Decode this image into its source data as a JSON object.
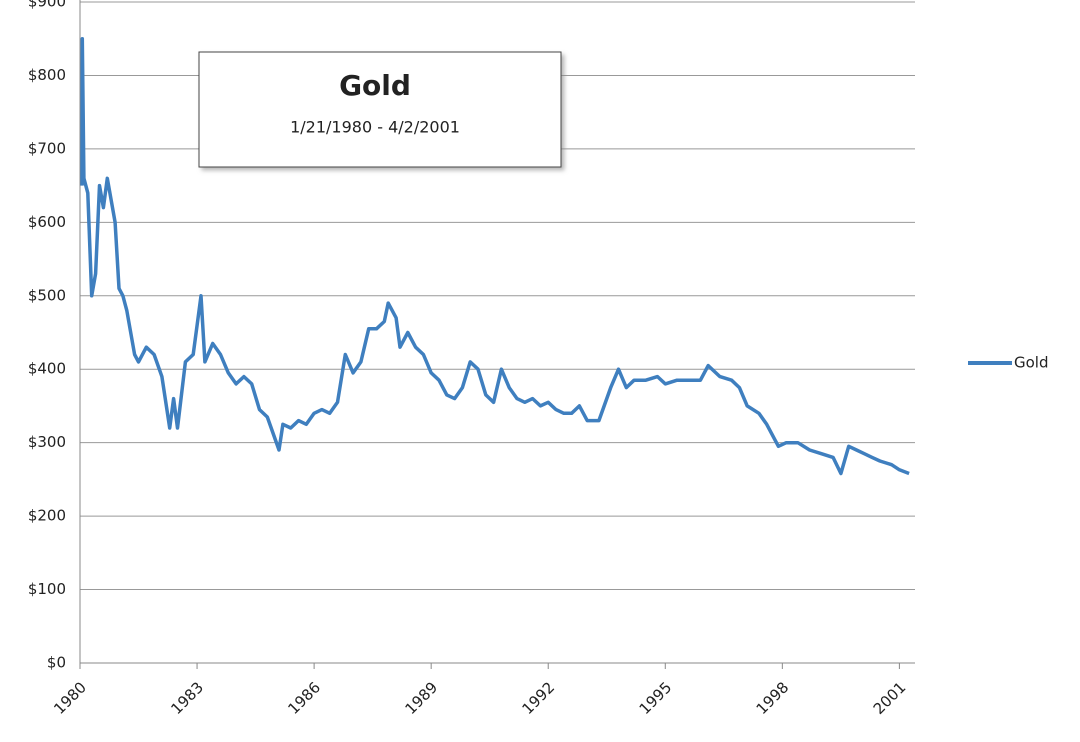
{
  "chart_data": {
    "type": "line",
    "title": "Gold",
    "subtitle": "1/21/1980  - 4/2/2001",
    "xlim": [
      1980,
      2001.4
    ],
    "xticks": [
      1980,
      1983,
      1986,
      1989,
      1992,
      1995,
      1998,
      2001
    ],
    "ylim": [
      0,
      900
    ],
    "yticks": [
      {
        "value": 0,
        "label": "$0"
      },
      {
        "value": 100,
        "label": "$100"
      },
      {
        "value": 200,
        "label": "$200"
      },
      {
        "value": 300,
        "label": "$300"
      },
      {
        "value": 400,
        "label": "$400"
      },
      {
        "value": 500,
        "label": "$500"
      },
      {
        "value": 600,
        "label": "$600"
      },
      {
        "value": 700,
        "label": "$700"
      },
      {
        "value": 800,
        "label": "$800"
      },
      {
        "value": 900,
        "label": "$900"
      }
    ],
    "grid": true,
    "legend": "right",
    "x": [
      1980.05,
      1980.06,
      1980.1,
      1980.2,
      1980.3,
      1980.4,
      1980.5,
      1980.6,
      1980.7,
      1980.8,
      1980.9,
      1981.0,
      1981.1,
      1981.2,
      1981.4,
      1981.5,
      1981.7,
      1981.9,
      1982.1,
      1982.3,
      1982.4,
      1982.5,
      1982.7,
      1982.9,
      1983.0,
      1983.1,
      1983.2,
      1983.4,
      1983.6,
      1983.8,
      1984.0,
      1984.2,
      1984.4,
      1984.6,
      1984.8,
      1985.0,
      1985.1,
      1985.2,
      1985.4,
      1985.6,
      1985.8,
      1986.0,
      1986.2,
      1986.4,
      1986.6,
      1986.8,
      1987.0,
      1987.2,
      1987.4,
      1987.6,
      1987.8,
      1987.9,
      1988.1,
      1988.2,
      1988.4,
      1988.6,
      1988.8,
      1989.0,
      1989.2,
      1989.4,
      1989.6,
      1989.8,
      1990.0,
      1990.2,
      1990.4,
      1990.6,
      1990.8,
      1991.0,
      1991.2,
      1991.4,
      1991.6,
      1991.8,
      1992.0,
      1992.2,
      1992.4,
      1992.6,
      1992.8,
      1993.0,
      1993.3,
      1993.6,
      1993.8,
      1994.0,
      1994.2,
      1994.5,
      1994.8,
      1995.0,
      1995.3,
      1995.6,
      1995.9,
      1996.1,
      1996.4,
      1996.7,
      1996.9,
      1997.1,
      1997.4,
      1997.6,
      1997.9,
      1998.1,
      1998.4,
      1998.7,
      1999.0,
      1999.3,
      1999.5,
      1999.7,
      1999.9,
      2000.1,
      2000.3,
      2000.5,
      2000.8,
      2001.0,
      2001.25
    ],
    "series": [
      {
        "name": "Gold",
        "color": "#3f7fbf",
        "values": [
          650,
          850,
          660,
          640,
          500,
          530,
          650,
          620,
          660,
          630,
          600,
          510,
          500,
          480,
          420,
          410,
          430,
          420,
          390,
          320,
          360,
          320,
          410,
          420,
          460,
          500,
          410,
          435,
          420,
          395,
          380,
          390,
          380,
          345,
          335,
          305,
          290,
          325,
          320,
          330,
          325,
          340,
          345,
          340,
          355,
          420,
          395,
          410,
          455,
          455,
          465,
          490,
          470,
          430,
          450,
          430,
          420,
          395,
          385,
          365,
          360,
          375,
          410,
          400,
          365,
          355,
          400,
          375,
          360,
          355,
          360,
          350,
          355,
          345,
          340,
          340,
          350,
          330,
          330,
          375,
          400,
          375,
          385,
          385,
          390,
          380,
          385,
          385,
          385,
          405,
          390,
          385,
          375,
          350,
          340,
          325,
          295,
          300,
          300,
          290,
          285,
          280,
          258,
          295,
          290,
          285,
          280,
          275,
          270,
          263,
          258
        ]
      }
    ]
  }
}
